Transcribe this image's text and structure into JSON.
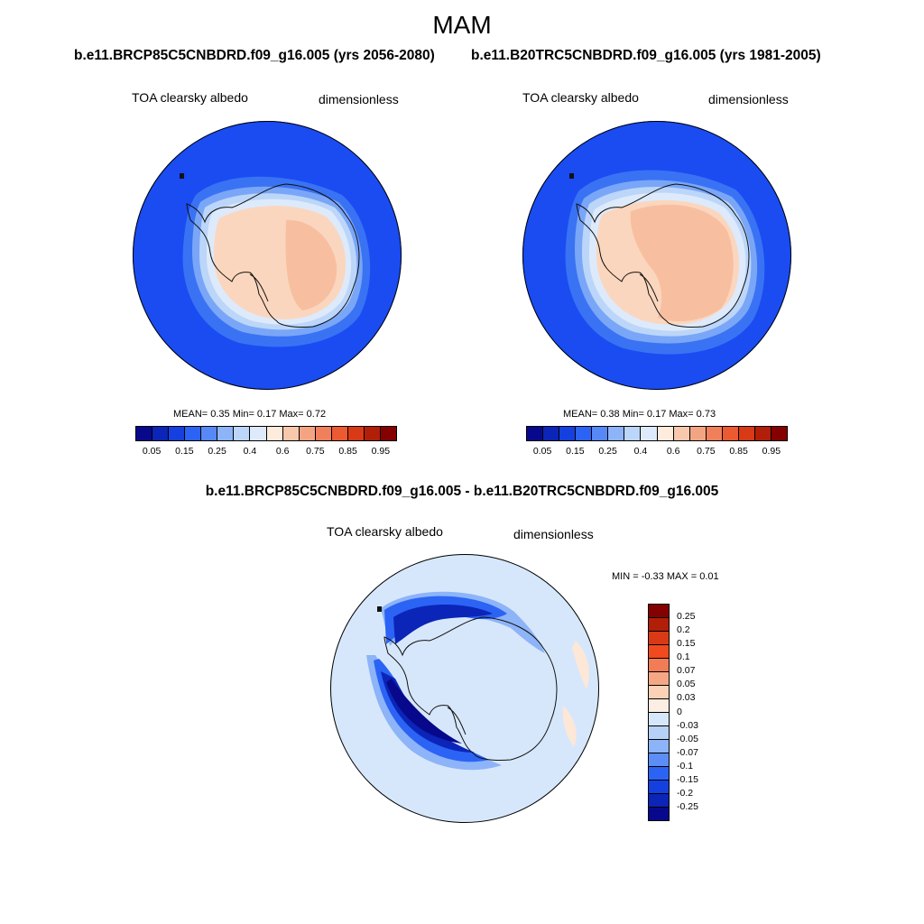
{
  "season": "MAM",
  "panels": [
    {
      "title": "b.e11.BRCP85C5CNBDRD.f09_g16.005 (yrs 2056-2080)",
      "variable": "TOA clearsky albedo",
      "units": "dimensionless",
      "stats": "MEAN=   0.35  Min=   0.17  Max=   0.72",
      "mean": 0.35,
      "min": 0.17,
      "max": 0.72
    },
    {
      "title": "b.e11.B20TRC5CNBDRD.f09_g16.005 (yrs 1981-2005)",
      "variable": "TOA clearsky albedo",
      "units": "dimensionless",
      "stats": "MEAN=   0.38  Min=   0.17  Max=   0.73",
      "mean": 0.38,
      "min": 0.17,
      "max": 0.73
    },
    {
      "title": "b.e11.BRCP85C5CNBDRD.f09_g16.005 - b.e11.B20TRC5CNBDRD.f09_g16.005",
      "variable": "TOA clearsky albedo",
      "units": "dimensionless",
      "stats": "MIN =  -0.33 MAX =   0.01",
      "min": -0.33,
      "max": 0.01
    }
  ],
  "abs_colorbar": {
    "labels": [
      "0.05",
      "0.15",
      "0.25",
      "0.4",
      "0.6",
      "0.75",
      "0.85",
      "0.95"
    ],
    "colors": [
      "#08088c",
      "#0a25b8",
      "#1540e0",
      "#2b63f5",
      "#5689f7",
      "#8db4f8",
      "#bcd6f9",
      "#ddeafb",
      "#fdebdb",
      "#f8c8ad",
      "#f3a583",
      "#f0805b",
      "#ec5a32",
      "#d83a16",
      "#b21f08",
      "#850000"
    ]
  },
  "diff_colorbar": {
    "labels": [
      "0.25",
      "0.2",
      "0.15",
      "0.1",
      "0.07",
      "0.05",
      "0.03",
      "0",
      "-0.03",
      "-0.05",
      "-0.07",
      "-0.1",
      "-0.15",
      "-0.2",
      "-0.25"
    ],
    "colors": [
      "#850000",
      "#b21f08",
      "#d83a16",
      "#f04a1e",
      "#f27c55",
      "#f5a785",
      "#fbd2b6",
      "#fdeee4",
      "#d7e7fb",
      "#b6d1f8",
      "#8db4f8",
      "#5c8ef6",
      "#2b63f5",
      "#1540e0",
      "#0a25b8",
      "#08088c"
    ]
  },
  "map_colors": {
    "ocean": "#1a4cf2",
    "ice_outer": "#3a72f4",
    "ice_mid": "#7aa6f7",
    "ice_edge": "#bcd6f9",
    "coast_white": "#ddeafb",
    "land_light": "#fbd6be",
    "land_mid": "#f7bfa0",
    "land_high": "#f3ab8a",
    "diff_bg": "#d7e7fb",
    "diff_pos": "#fde7d6",
    "diff_1": "#8db4f8",
    "diff_2": "#2b63f5",
    "diff_3": "#0a25b8",
    "diff_4": "#08088c"
  }
}
